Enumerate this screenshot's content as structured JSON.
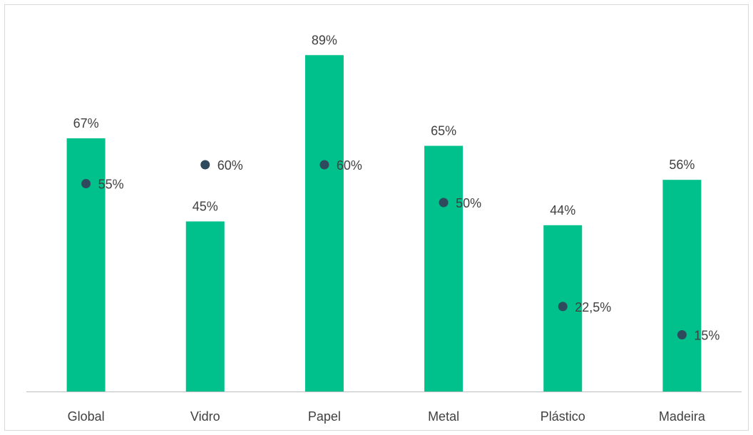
{
  "chart_data": {
    "type": "bar",
    "categories": [
      "Global",
      "Vidro",
      "Papel",
      "Metal",
      "Plástico",
      "Madeira"
    ],
    "series": [
      {
        "values": [
          67,
          45,
          89,
          65,
          44,
          56
        ],
        "labels": [
          "67%",
          "45%",
          "89%",
          "65%",
          "44%",
          "56%"
        ],
        "color": "#00c08b",
        "kind": "bar"
      },
      {
        "values": [
          55,
          60,
          60,
          50,
          22.5,
          15
        ],
        "labels": [
          "55%",
          "60%",
          "60%",
          "50%",
          "22,5%",
          "15%"
        ],
        "color": "#2e4a5c",
        "kind": "marker"
      }
    ],
    "title": "",
    "xlabel": "",
    "ylabel": "",
    "ylim": [
      0,
      100
    ],
    "grid": false,
    "legend": "none"
  }
}
